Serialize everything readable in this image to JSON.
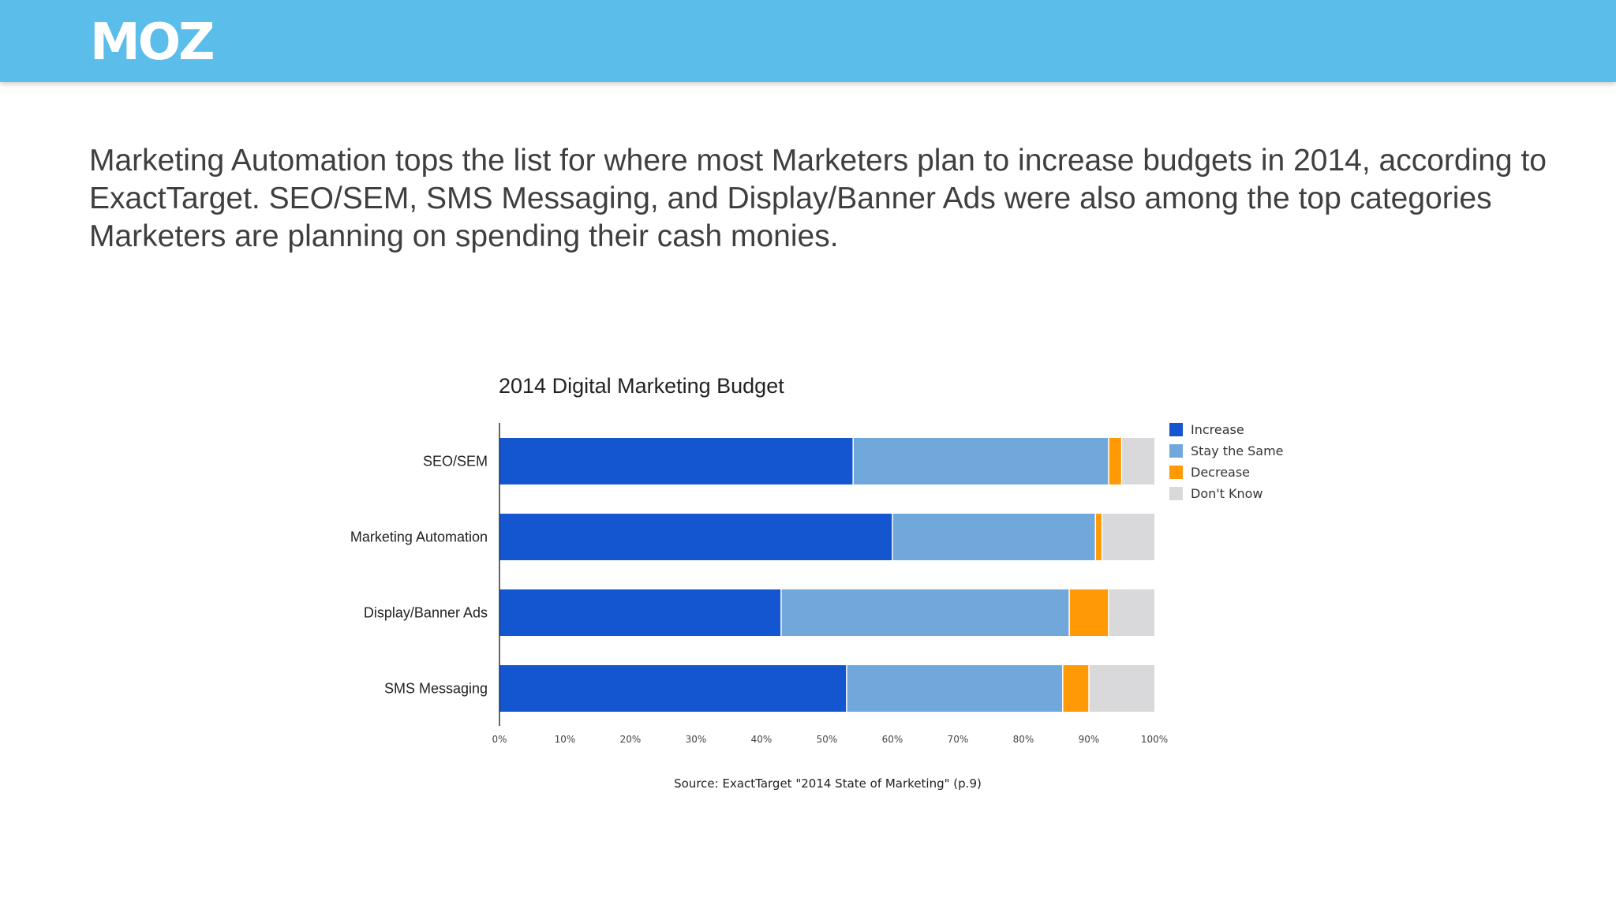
{
  "header": {
    "logo_text": "MOZ",
    "background": "#5bbde9"
  },
  "intro": "Marketing Automation tops the list for where most Marketers plan to increase budgets in 2014, according to ExactTarget. SEO/SEM, SMS Messaging, and Display/Banner Ads were also among the top categories Marketers are planning on spending their cash monies.",
  "chart_data": {
    "type": "bar",
    "orientation": "horizontal",
    "stacked": true,
    "title": "2014 Digital Marketing Budget",
    "source": "Source: ExactTarget \"2014 State of Marketing\" (p.9)",
    "categories": [
      "SEO/SEM",
      "Marketing Automation",
      "Display/Banner Ads",
      "SMS Messaging"
    ],
    "series": [
      {
        "name": "Increase",
        "color": "#1455d0",
        "values": [
          54,
          60,
          43,
          53
        ]
      },
      {
        "name": "Stay the Same",
        "color": "#71a8dc",
        "values": [
          39,
          31,
          44,
          33
        ]
      },
      {
        "name": "Decrease",
        "color": "#ff9a06",
        "values": [
          2,
          1,
          6,
          4
        ]
      },
      {
        "name": "Don't Know",
        "color": "#d9d8da",
        "values": [
          5,
          8,
          7,
          10
        ]
      }
    ],
    "xlim": [
      0,
      100
    ],
    "xticks": [
      "0%",
      "10%",
      "20%",
      "30%",
      "40%",
      "50%",
      "60%",
      "70%",
      "80%",
      "90%",
      "100%"
    ],
    "legend": "right",
    "grid": false
  }
}
